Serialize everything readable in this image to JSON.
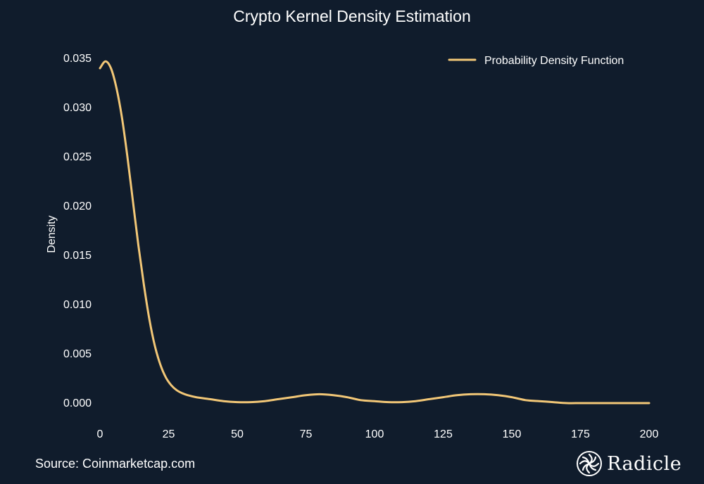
{
  "chart_data": {
    "type": "line",
    "title": "Crypto Kernel Density Estimation",
    "xlabel": "",
    "ylabel": "Density",
    "xlim": [
      0,
      200
    ],
    "ylim": [
      -0.001,
      0.0355
    ],
    "x_ticks": [
      0,
      25,
      50,
      75,
      100,
      125,
      150,
      175,
      200
    ],
    "y_ticks": [
      0.0,
      0.005,
      0.01,
      0.015,
      0.02,
      0.025,
      0.03,
      0.035
    ],
    "y_tick_labels": [
      "0.000",
      "0.005",
      "0.010",
      "0.015",
      "0.020",
      "0.025",
      "0.030",
      "0.035"
    ],
    "grid": false,
    "legend_position": "top-right",
    "series": [
      {
        "name": "Probability Density Function",
        "color": "#f2c777",
        "x": [
          0,
          2,
          4,
          6,
          8,
          10,
          12,
          14,
          16,
          18,
          20,
          22,
          24,
          26,
          28,
          30,
          32,
          35,
          40,
          45,
          50,
          55,
          60,
          65,
          70,
          75,
          80,
          85,
          90,
          95,
          100,
          105,
          110,
          115,
          120,
          125,
          130,
          135,
          140,
          145,
          150,
          155,
          160,
          165,
          170,
          175,
          180,
          190,
          200
        ],
        "values": [
          0.034,
          0.0347,
          0.034,
          0.032,
          0.029,
          0.025,
          0.0205,
          0.016,
          0.012,
          0.0085,
          0.0058,
          0.0039,
          0.0026,
          0.0018,
          0.0013,
          0.001,
          0.0008,
          0.0006,
          0.0004,
          0.0002,
          0.0001,
          0.0001,
          0.0002,
          0.0004,
          0.0006,
          0.0008,
          0.0009,
          0.0008,
          0.0006,
          0.0003,
          0.0002,
          0.0001,
          0.0001,
          0.0002,
          0.0004,
          0.0006,
          0.0008,
          0.0009,
          0.0009,
          0.0008,
          0.0006,
          0.0003,
          0.0002,
          0.0001,
          0.0,
          0.0,
          0.0,
          0.0,
          0.0
        ]
      }
    ]
  },
  "footer": {
    "source": "Source: Coinmarketcap.com",
    "brand": "Radicle",
    "brand_icon": "radicle-logo-icon"
  },
  "colors": {
    "background": "#101c2c",
    "line": "#f2c777",
    "text": "#ffffff"
  }
}
